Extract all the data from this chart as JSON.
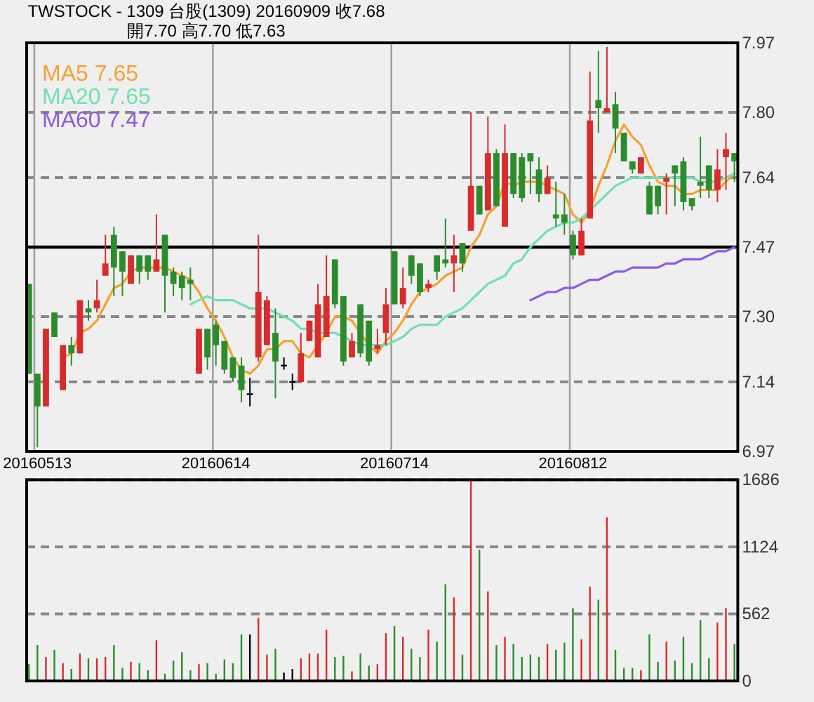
{
  "chart_data": [
    {
      "type": "candlestick",
      "title": "TWSTOCK - 1309 台股(1309) 20160909 收7.68",
      "subtitle": "開7.70 高7.70 低7.63",
      "categories": [
        null,
        "20160513",
        null,
        null,
        null,
        null,
        null,
        null,
        null,
        null,
        null,
        null,
        null,
        null,
        null,
        null,
        null,
        null,
        null,
        null,
        null,
        null,
        "20160614",
        null,
        null,
        null,
        null,
        null,
        null,
        null,
        null,
        null,
        null,
        null,
        null,
        null,
        null,
        null,
        null,
        null,
        null,
        null,
        null,
        "20160714",
        null,
        null,
        null,
        null,
        null,
        null,
        null,
        null,
        null,
        null,
        null,
        null,
        null,
        null,
        null,
        null,
        null,
        null,
        null,
        null,
        "20160812",
        null,
        null,
        null,
        null,
        null,
        null,
        null,
        null,
        null,
        null,
        null,
        null,
        null,
        null,
        null,
        null,
        null,
        null,
        null
      ],
      "ohlc": [
        [
          7.38,
          7.38,
          7.16,
          7.16
        ],
        [
          7.16,
          7.16,
          6.98,
          7.08
        ],
        [
          7.08,
          7.27,
          7.08,
          7.27
        ],
        [
          7.31,
          7.31,
          7.25,
          7.25
        ],
        [
          7.12,
          7.23,
          7.12,
          7.23
        ],
        [
          7.23,
          7.25,
          7.18,
          7.21
        ],
        [
          7.21,
          7.34,
          7.21,
          7.34
        ],
        [
          7.32,
          7.34,
          7.29,
          7.31
        ],
        [
          7.32,
          7.39,
          7.31,
          7.34
        ],
        [
          7.4,
          7.5,
          7.4,
          7.43
        ],
        [
          7.5,
          7.52,
          7.35,
          7.42
        ],
        [
          7.46,
          7.46,
          7.35,
          7.41
        ],
        [
          7.38,
          7.45,
          7.38,
          7.45
        ],
        [
          7.45,
          7.45,
          7.38,
          7.41
        ],
        [
          7.45,
          7.45,
          7.39,
          7.41
        ],
        [
          7.41,
          7.55,
          7.41,
          7.44
        ],
        [
          7.5,
          7.5,
          7.31,
          7.4
        ],
        [
          7.41,
          7.42,
          7.35,
          7.38
        ],
        [
          7.4,
          7.41,
          7.34,
          7.37
        ],
        [
          7.39,
          7.42,
          7.34,
          7.38
        ],
        [
          7.16,
          7.27,
          7.16,
          7.27
        ],
        [
          7.27,
          7.27,
          7.17,
          7.2
        ],
        [
          7.28,
          7.29,
          7.18,
          7.23
        ],
        [
          7.24,
          7.24,
          7.16,
          7.17
        ],
        [
          7.2,
          7.2,
          7.14,
          7.15
        ],
        [
          7.18,
          7.2,
          7.09,
          7.12
        ],
        [
          7.11,
          7.15,
          7.08,
          7.11
        ],
        [
          7.2,
          7.5,
          7.19,
          7.36
        ],
        [
          7.23,
          7.35,
          7.23,
          7.34
        ],
        [
          7.26,
          7.32,
          7.1,
          7.19
        ],
        [
          7.18,
          7.2,
          7.17,
          7.18
        ],
        [
          7.14,
          7.16,
          7.12,
          7.14
        ],
        [
          7.14,
          7.26,
          7.14,
          7.21
        ],
        [
          7.24,
          7.29,
          7.24,
          7.29
        ],
        [
          7.2,
          7.38,
          7.2,
          7.33
        ],
        [
          7.25,
          7.45,
          7.25,
          7.35
        ],
        [
          7.44,
          7.44,
          7.32,
          7.33
        ],
        [
          7.35,
          7.35,
          7.18,
          7.19
        ],
        [
          7.2,
          7.26,
          7.2,
          7.24
        ],
        [
          7.33,
          7.33,
          7.2,
          7.21
        ],
        [
          7.29,
          7.29,
          7.18,
          7.19
        ],
        [
          7.22,
          7.27,
          7.21,
          7.23
        ],
        [
          7.26,
          7.37,
          7.23,
          7.33
        ],
        [
          7.46,
          7.46,
          7.33,
          7.33
        ],
        [
          7.33,
          7.42,
          7.32,
          7.37
        ],
        [
          7.45,
          7.45,
          7.38,
          7.4
        ],
        [
          7.43,
          7.43,
          7.35,
          7.36
        ],
        [
          7.37,
          7.39,
          7.36,
          7.38
        ],
        [
          7.45,
          7.45,
          7.39,
          7.41
        ],
        [
          7.44,
          7.54,
          7.42,
          7.43
        ],
        [
          7.43,
          7.5,
          7.36,
          7.45
        ],
        [
          7.48,
          7.48,
          7.41,
          7.43
        ],
        [
          7.51,
          7.8,
          7.51,
          7.62
        ],
        [
          7.62,
          7.62,
          7.55,
          7.55
        ],
        [
          7.56,
          7.79,
          7.56,
          7.7
        ],
        [
          7.7,
          7.71,
          7.57,
          7.57
        ],
        [
          7.52,
          7.77,
          7.52,
          7.7
        ],
        [
          7.7,
          7.7,
          7.59,
          7.6
        ],
        [
          7.69,
          7.7,
          7.58,
          7.59
        ],
        [
          7.7,
          7.7,
          7.6,
          7.68
        ],
        [
          7.66,
          7.69,
          7.58,
          7.6
        ],
        [
          7.6,
          7.67,
          7.6,
          7.64
        ],
        [
          7.55,
          7.63,
          7.52,
          7.54
        ],
        [
          7.55,
          7.6,
          7.5,
          7.53
        ],
        [
          7.5,
          7.51,
          7.44,
          7.45
        ],
        [
          7.45,
          7.54,
          7.45,
          7.51
        ],
        [
          7.54,
          7.9,
          7.54,
          7.78
        ],
        [
          7.83,
          7.95,
          7.75,
          7.81
        ],
        [
          7.8,
          7.96,
          7.8,
          7.81
        ],
        [
          7.82,
          7.85,
          7.7,
          7.76
        ],
        [
          7.75,
          7.75,
          7.68,
          7.68
        ],
        [
          7.68,
          7.68,
          7.65,
          7.66
        ],
        [
          7.65,
          7.69,
          7.65,
          7.69
        ],
        [
          7.62,
          7.63,
          7.55,
          7.55
        ],
        [
          7.62,
          7.62,
          7.55,
          7.57
        ],
        [
          7.63,
          7.65,
          7.55,
          7.64
        ],
        [
          7.67,
          7.67,
          7.57,
          7.65
        ],
        [
          7.68,
          7.69,
          7.56,
          7.58
        ],
        [
          7.59,
          7.59,
          7.56,
          7.57
        ],
        [
          7.63,
          7.74,
          7.59,
          7.62
        ],
        [
          7.67,
          7.67,
          7.59,
          7.61
        ],
        [
          7.61,
          7.71,
          7.58,
          7.66
        ],
        [
          7.69,
          7.75,
          7.61,
          7.71
        ],
        [
          7.7,
          7.7,
          7.63,
          7.68
        ]
      ],
      "colors": [
        "#2c8c2c",
        "#2c8c2c",
        "#d92b2b",
        "#2c8c2c",
        "#d92b2b",
        "#2c8c2c",
        "#d92b2b",
        "#2c8c2c",
        "#d92b2b",
        "#d92b2b",
        "#2c8c2c",
        "#2c8c2c",
        "#d92b2b",
        "#2c8c2c",
        "#2c8c2c",
        "#d92b2b",
        "#2c8c2c",
        "#2c8c2c",
        "#2c8c2c",
        "#2c8c2c",
        "#d92b2b",
        "#2c8c2c",
        "#2c8c2c",
        "#2c8c2c",
        "#2c8c2c",
        "#2c8c2c",
        "#000000",
        "#d92b2b",
        "#d92b2b",
        "#2c8c2c",
        "#000000",
        "#000000",
        "#d92b2b",
        "#d92b2b",
        "#d92b2b",
        "#d92b2b",
        "#2c8c2c",
        "#2c8c2c",
        "#d92b2b",
        "#2c8c2c",
        "#2c8c2c",
        "#d92b2b",
        "#d92b2b",
        "#2c8c2c",
        "#d92b2b",
        "#2c8c2c",
        "#2c8c2c",
        "#d92b2b",
        "#2c8c2c",
        "#2c8c2c",
        "#d92b2b",
        "#2c8c2c",
        "#d92b2b",
        "#2c8c2c",
        "#d92b2b",
        "#2c8c2c",
        "#d92b2b",
        "#2c8c2c",
        "#2c8c2c",
        "#2c8c2c",
        "#2c8c2c",
        "#d92b2b",
        "#2c8c2c",
        "#2c8c2c",
        "#2c8c2c",
        "#d92b2b",
        "#d92b2b",
        "#2c8c2c",
        "#d92b2b",
        "#2c8c2c",
        "#2c8c2c",
        "#2c8c2c",
        "#d92b2b",
        "#2c8c2c",
        "#2c8c2c",
        "#d92b2b",
        "#2c8c2c",
        "#2c8c2c",
        "#2c8c2c",
        "#2c8c2c",
        "#2c8c2c",
        "#d92b2b",
        "#d92b2b",
        "#2c8c2c"
      ],
      "series": [
        {
          "name": "MA5 7.65",
          "type": "line",
          "color": "#f5a030",
          "values": [
            null,
            null,
            null,
            null,
            7.2,
            7.21,
            7.26,
            7.27,
            7.29,
            7.33,
            7.37,
            7.38,
            7.41,
            7.42,
            7.42,
            7.42,
            7.42,
            7.41,
            7.4,
            7.39,
            7.36,
            7.32,
            7.29,
            7.25,
            7.2,
            7.17,
            7.16,
            7.18,
            7.22,
            7.22,
            7.24,
            7.24,
            7.21,
            7.2,
            7.23,
            7.26,
            7.3,
            7.3,
            7.29,
            7.26,
            7.23,
            7.21,
            7.24,
            7.26,
            7.29,
            7.33,
            7.36,
            7.37,
            7.38,
            7.4,
            7.41,
            7.42,
            7.47,
            7.5,
            7.55,
            7.57,
            7.63,
            7.62,
            7.63,
            7.63,
            7.63,
            7.62,
            7.61,
            7.6,
            7.55,
            7.53,
            7.56,
            7.62,
            7.67,
            7.73,
            7.77,
            7.74,
            7.72,
            7.67,
            7.63,
            7.62,
            7.62,
            7.6,
            7.6,
            7.61,
            7.61,
            7.61,
            7.63,
            7.65
          ]
        },
        {
          "name": "MA20 7.65",
          "type": "line",
          "color": "#6fe0b2",
          "values": [
            null,
            null,
            null,
            null,
            null,
            null,
            null,
            null,
            null,
            null,
            null,
            null,
            null,
            null,
            null,
            null,
            null,
            null,
            null,
            7.33,
            7.34,
            7.35,
            7.34,
            7.34,
            7.34,
            7.33,
            7.32,
            7.32,
            7.32,
            7.31,
            7.3,
            7.29,
            7.27,
            7.27,
            7.26,
            7.26,
            7.26,
            7.25,
            7.24,
            7.23,
            7.23,
            7.23,
            7.23,
            7.24,
            7.25,
            7.27,
            7.28,
            7.28,
            7.28,
            7.3,
            7.31,
            7.32,
            7.34,
            7.36,
            7.38,
            7.39,
            7.4,
            7.43,
            7.44,
            7.47,
            7.49,
            7.51,
            7.52,
            7.53,
            7.53,
            7.54,
            7.56,
            7.58,
            7.6,
            7.62,
            7.63,
            7.64,
            7.64,
            7.64,
            7.64,
            7.64,
            7.64,
            7.64,
            7.64,
            7.63,
            7.63,
            7.63,
            7.64,
            7.65
          ]
        },
        {
          "name": "MA60 7.47",
          "type": "line",
          "color": "#8a5ce0",
          "values": [
            null,
            null,
            null,
            null,
            null,
            null,
            null,
            null,
            null,
            null,
            null,
            null,
            null,
            null,
            null,
            null,
            null,
            null,
            null,
            null,
            null,
            null,
            null,
            null,
            null,
            null,
            null,
            null,
            null,
            null,
            null,
            null,
            null,
            null,
            null,
            null,
            null,
            null,
            null,
            null,
            null,
            null,
            null,
            null,
            null,
            null,
            null,
            null,
            null,
            null,
            null,
            null,
            null,
            null,
            null,
            null,
            null,
            null,
            null,
            7.34,
            7.35,
            7.36,
            7.36,
            7.37,
            7.37,
            7.38,
            7.39,
            7.39,
            7.4,
            7.41,
            7.41,
            7.42,
            7.42,
            7.42,
            7.42,
            7.43,
            7.43,
            7.44,
            7.44,
            7.44,
            7.45,
            7.46,
            7.46,
            7.47
          ]
        }
      ],
      "ylim": [
        6.97,
        7.97
      ],
      "yticks": [
        7.97,
        {
          "value": 7.8,
          "label": "7.80"
        },
        7.64,
        7.47,
        {
          "value": 7.3,
          "label": "7.30"
        },
        7.14,
        6.97
      ],
      "grid": true,
      "legend": "top left",
      "ref_lines": [
        {
          "axis": "y",
          "value": 7.47,
          "color": "#000000"
        }
      ]
    },
    {
      "type": "bar",
      "categories": [
        null,
        null,
        null,
        null,
        null,
        null,
        null,
        null,
        null,
        null,
        null,
        null,
        null,
        null,
        null,
        null,
        null,
        null,
        null,
        null,
        null,
        null,
        null,
        null,
        null,
        null,
        null,
        null,
        null,
        null,
        null,
        null,
        null,
        null,
        null,
        null,
        null,
        null,
        null,
        null,
        null,
        null,
        null,
        null,
        null,
        null,
        null,
        null,
        null,
        null,
        null,
        null,
        null,
        null,
        null,
        null,
        null,
        null,
        null,
        null,
        null,
        null,
        null,
        null,
        null,
        null,
        null,
        null,
        null,
        null,
        null,
        null,
        null,
        null,
        null,
        null,
        null,
        null,
        null,
        null,
        null,
        null,
        null,
        null
      ],
      "values": [
        140,
        300,
        200,
        260,
        150,
        100,
        230,
        190,
        190,
        200,
        300,
        110,
        160,
        150,
        90,
        340,
        60,
        170,
        240,
        90,
        140,
        150,
        60,
        180,
        150,
        390,
        390,
        530,
        220,
        270,
        70,
        100,
        190,
        230,
        230,
        430,
        200,
        210,
        80,
        230,
        130,
        140,
        400,
        460,
        370,
        270,
        200,
        430,
        330,
        810,
        700,
        220,
        1680,
        1100,
        750,
        300,
        370,
        310,
        200,
        220,
        200,
        310,
        260,
        320,
        610,
        350,
        790,
        680,
        1370,
        260,
        110,
        110,
        90,
        390,
        160,
        330,
        170,
        370,
        150,
        510,
        190,
        490,
        610,
        310
      ],
      "colors": [
        "#2c8c2c",
        "#2c8c2c",
        "#d92b2b",
        "#2c8c2c",
        "#d92b2b",
        "#2c8c2c",
        "#d92b2b",
        "#2c8c2c",
        "#d92b2b",
        "#d92b2b",
        "#2c8c2c",
        "#2c8c2c",
        "#d92b2b",
        "#2c8c2c",
        "#2c8c2c",
        "#d92b2b",
        "#2c8c2c",
        "#2c8c2c",
        "#2c8c2c",
        "#2c8c2c",
        "#d92b2b",
        "#2c8c2c",
        "#2c8c2c",
        "#2c8c2c",
        "#2c8c2c",
        "#2c8c2c",
        "#000000",
        "#d92b2b",
        "#d92b2b",
        "#2c8c2c",
        "#000000",
        "#000000",
        "#d92b2b",
        "#d92b2b",
        "#d92b2b",
        "#d92b2b",
        "#2c8c2c",
        "#2c8c2c",
        "#d92b2b",
        "#2c8c2c",
        "#2c8c2c",
        "#d92b2b",
        "#d92b2b",
        "#2c8c2c",
        "#d92b2b",
        "#2c8c2c",
        "#2c8c2c",
        "#d92b2b",
        "#2c8c2c",
        "#2c8c2c",
        "#d92b2b",
        "#2c8c2c",
        "#d92b2b",
        "#2c8c2c",
        "#d92b2b",
        "#2c8c2c",
        "#d92b2b",
        "#2c8c2c",
        "#2c8c2c",
        "#2c8c2c",
        "#2c8c2c",
        "#d92b2b",
        "#2c8c2c",
        "#2c8c2c",
        "#2c8c2c",
        "#d92b2b",
        "#d92b2b",
        "#2c8c2c",
        "#d92b2b",
        "#2c8c2c",
        "#2c8c2c",
        "#2c8c2c",
        "#d92b2b",
        "#2c8c2c",
        "#2c8c2c",
        "#d92b2b",
        "#2c8c2c",
        "#2c8c2c",
        "#2c8c2c",
        "#2c8c2c",
        "#2c8c2c",
        "#d92b2b",
        "#d92b2b",
        "#2c8c2c"
      ],
      "ylim": [
        0,
        1686
      ],
      "yticks": [
        1686,
        1124,
        562,
        0
      ],
      "grid": "y",
      "tick_labels": "y"
    }
  ]
}
